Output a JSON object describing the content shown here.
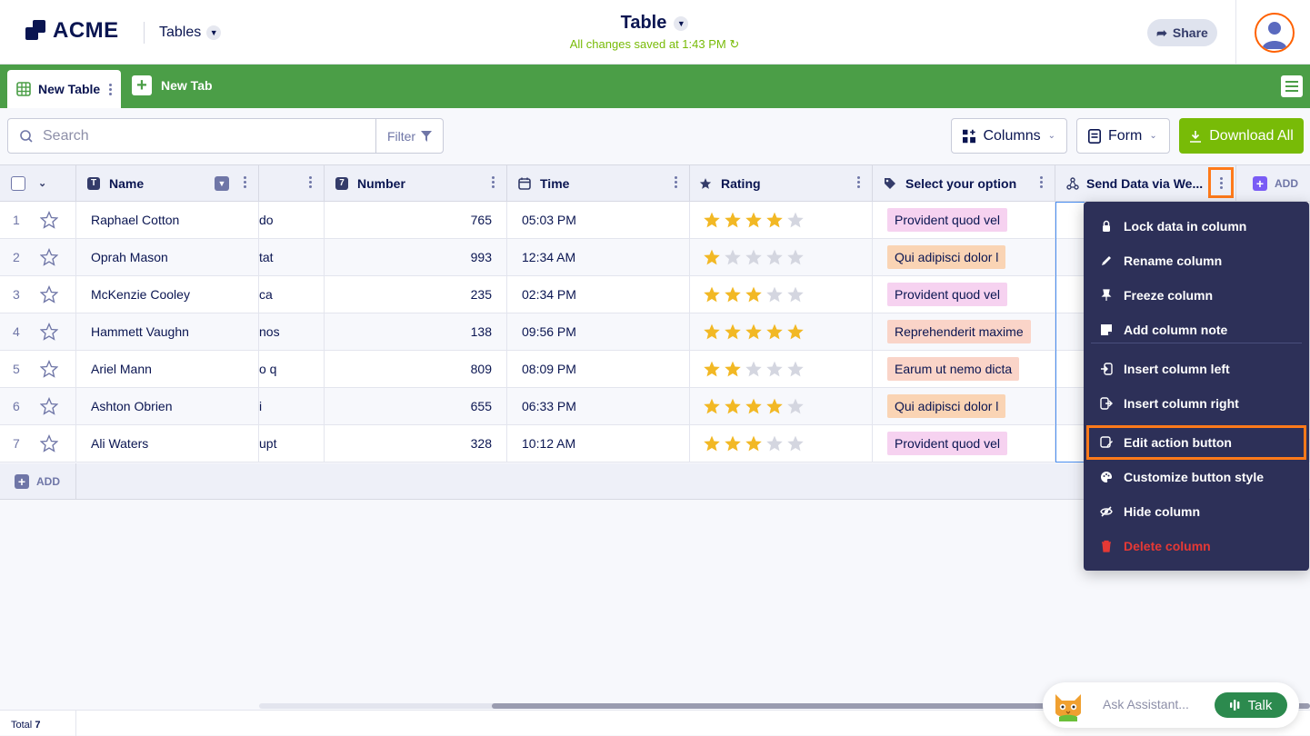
{
  "brand": {
    "name": "ACME"
  },
  "header": {
    "tables_label": "Tables",
    "title": "Table",
    "saved_status": "All changes saved at 1:43 PM",
    "share_label": "Share"
  },
  "tabs": {
    "active_label": "New Table",
    "new_tab_label": "New Tab"
  },
  "toolbar": {
    "search_placeholder": "Search",
    "filter_label": "Filter",
    "columns_label": "Columns",
    "form_label": "Form",
    "download_label": "Download All"
  },
  "columns": [
    {
      "label": "Name",
      "type": "text",
      "icon": "text-type-icon"
    },
    {
      "label": "",
      "type": "text"
    },
    {
      "label": "Number",
      "type": "number",
      "icon": "number-type-icon"
    },
    {
      "label": "Time",
      "type": "time",
      "icon": "calendar-icon"
    },
    {
      "label": "Rating",
      "type": "rating",
      "icon": "star-icon"
    },
    {
      "label": "Select your option",
      "type": "select",
      "icon": "tag-icon"
    },
    {
      "label": "Send Data via We...",
      "type": "action",
      "icon": "webhook-icon"
    }
  ],
  "add_column_label": "ADD",
  "rows": [
    {
      "n": "1",
      "name": "Raphael Cotton",
      "partial": "do",
      "number": "765",
      "time": "05:03 PM",
      "rating": 4,
      "option": "Provident quod vel",
      "option_color": "#f6d2f0"
    },
    {
      "n": "2",
      "name": "Oprah Mason",
      "partial": "tat",
      "number": "993",
      "time": "12:34 AM",
      "rating": 1,
      "option": "Qui adipisci dolor l",
      "option_color": "#fad4b4"
    },
    {
      "n": "3",
      "name": "McKenzie Cooley",
      "partial": "ca",
      "number": "235",
      "time": "02:34 PM",
      "rating": 3,
      "option": "Provident quod vel",
      "option_color": "#f6d2f0"
    },
    {
      "n": "4",
      "name": "Hammett Vaughn",
      "partial": "nos",
      "number": "138",
      "time": "09:56 PM",
      "rating": 5,
      "option": "Reprehenderit maxime",
      "option_color": "#fad4c8"
    },
    {
      "n": "5",
      "name": "Ariel Mann",
      "partial": "o q",
      "number": "809",
      "time": "08:09 PM",
      "rating": 2,
      "option": "Earum ut nemo dicta",
      "option_color": "#fad4c8"
    },
    {
      "n": "6",
      "name": "Ashton Obrien",
      "partial": "i",
      "number": "655",
      "time": "06:33 PM",
      "rating": 4,
      "option": "Qui adipisci dolor l",
      "option_color": "#fad4b4"
    },
    {
      "n": "7",
      "name": "Ali Waters",
      "partial": "upt",
      "number": "328",
      "time": "10:12 AM",
      "rating": 3,
      "option": "Provident quod vel",
      "option_color": "#f6d2f0"
    }
  ],
  "add_row_label": "ADD",
  "column_menu": [
    {
      "label": "Lock data in column",
      "icon": "lock-icon"
    },
    {
      "label": "Rename column",
      "icon": "pencil-icon"
    },
    {
      "label": "Freeze column",
      "icon": "pin-icon"
    },
    {
      "label": "Add column note",
      "icon": "note-icon"
    },
    {
      "label": "Insert column left",
      "icon": "insert-left-icon"
    },
    {
      "label": "Insert column right",
      "icon": "insert-right-icon"
    },
    {
      "label": "Edit action button",
      "icon": "edit-action-icon",
      "highlighted": true
    },
    {
      "label": "Customize button style",
      "icon": "palette-icon"
    },
    {
      "label": "Hide column",
      "icon": "eye-slash-icon"
    },
    {
      "label": "Delete column",
      "icon": "trash-icon",
      "danger": true
    }
  ],
  "footer": {
    "total_label": "Total",
    "total_count": "7"
  },
  "assistant": {
    "placeholder": "Ask Assistant...",
    "talk_label": "Talk"
  }
}
